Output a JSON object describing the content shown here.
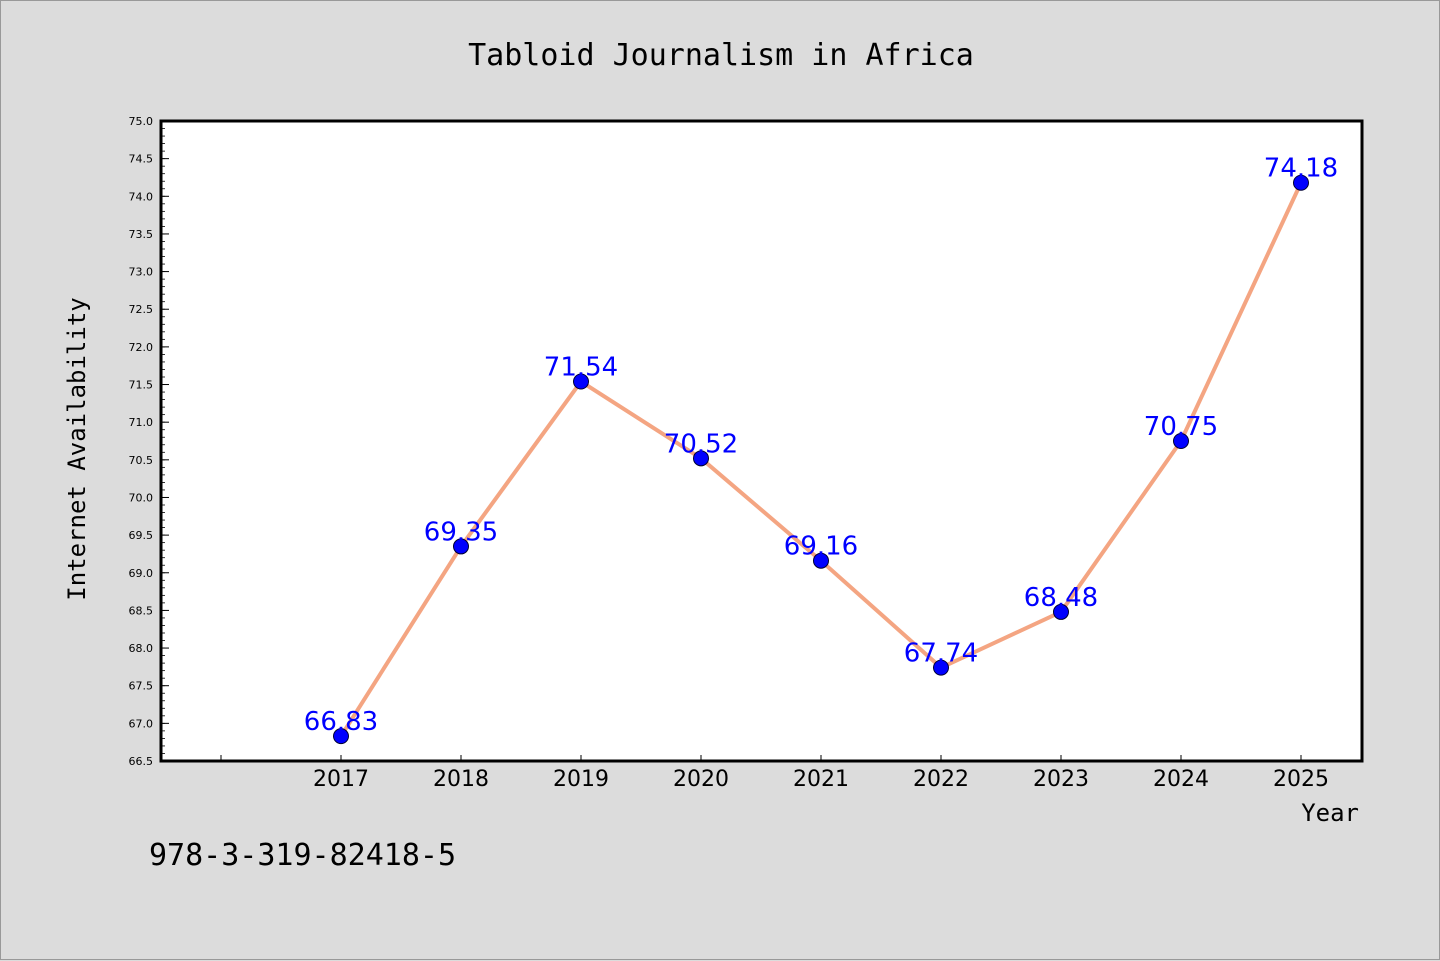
{
  "chart_data": {
    "type": "line",
    "title": "Tabloid Journalism in Africa",
    "xlabel": "Year",
    "ylabel": "Internet Availability",
    "categories": [
      "2017",
      "2018",
      "2019",
      "2020",
      "2021",
      "2022",
      "2023",
      "2024",
      "2025"
    ],
    "series": [
      {
        "values": [
          66.83,
          69.35,
          71.54,
          70.52,
          69.16,
          67.74,
          68.48,
          70.75,
          74.18
        ]
      }
    ],
    "data_labels": [
      "66.83",
      "69.35",
      "71.54",
      "70.52",
      "69.16",
      "67.74",
      "68.48",
      "70.75",
      "74.18"
    ],
    "ylim": [
      66.5,
      75.0
    ],
    "yticks": [
      "66.5",
      "67.0",
      "67.5",
      "68.0",
      "68.5",
      "69.0",
      "69.5",
      "70.0",
      "70.5",
      "71.0",
      "71.5",
      "72.0",
      "72.5",
      "73.0",
      "73.5",
      "74.0",
      "74.5",
      "75.0"
    ],
    "grid": false,
    "colors": {
      "line": "#f4a582",
      "marker": "#0000ff",
      "label": "#0000ff",
      "background": "#dcdcdc",
      "plot_background": "#ffffff"
    }
  },
  "annotation": {
    "isbn": "978-3-319-82418-5"
  }
}
